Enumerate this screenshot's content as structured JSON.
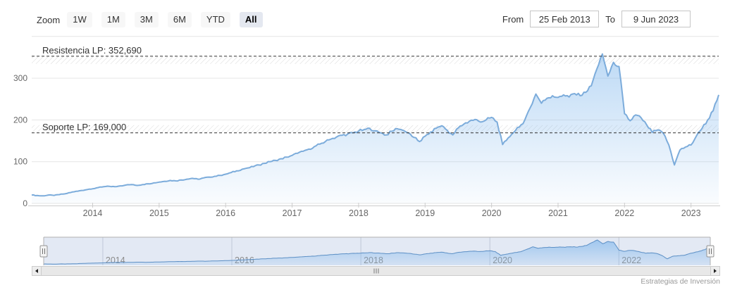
{
  "toolbar": {
    "zoom_label": "Zoom",
    "buttons": [
      {
        "label": "1W",
        "selected": false
      },
      {
        "label": "1M",
        "selected": false
      },
      {
        "label": "3M",
        "selected": false
      },
      {
        "label": "6M",
        "selected": false
      },
      {
        "label": "YTD",
        "selected": false
      },
      {
        "label": "All",
        "selected": true
      }
    ],
    "from_label": "From",
    "from_value": "25 Feb 2013",
    "to_label": "To",
    "to_value": "9 Jun 2023"
  },
  "chart_data": {
    "type": "area",
    "title": "",
    "xlabel": "",
    "ylabel": "",
    "x_unit": "month",
    "x_range": [
      "2013-02",
      "2023-06"
    ],
    "ylim": [
      0,
      400
    ],
    "yticks": [
      0,
      100,
      200,
      300
    ],
    "xticks": [
      "2014",
      "2015",
      "2016",
      "2017",
      "2018",
      "2019",
      "2020",
      "2021",
      "2022",
      "2023"
    ],
    "plot_lines": [
      {
        "label": "Resistencia LP: 352,690",
        "value": 352.69,
        "style": "dashed",
        "hatch_side": "below"
      },
      {
        "label": "Soporte LP: 169,000",
        "value": 169.0,
        "style": "dashed",
        "hatch_side": "above"
      }
    ],
    "points": [
      [
        "2013-02",
        20
      ],
      [
        "2013-03",
        19
      ],
      [
        "2013-04",
        18
      ],
      [
        "2013-05",
        20
      ],
      [
        "2013-06",
        19
      ],
      [
        "2013-07",
        21
      ],
      [
        "2013-08",
        23
      ],
      [
        "2013-09",
        26
      ],
      [
        "2013-10",
        29
      ],
      [
        "2013-11",
        31
      ],
      [
        "2013-12",
        33
      ],
      [
        "2014-01",
        35
      ],
      [
        "2014-02",
        38
      ],
      [
        "2014-03",
        40
      ],
      [
        "2014-04",
        41
      ],
      [
        "2014-05",
        40
      ],
      [
        "2014-06",
        42
      ],
      [
        "2014-07",
        44
      ],
      [
        "2014-08",
        45
      ],
      [
        "2014-09",
        43
      ],
      [
        "2014-10",
        45
      ],
      [
        "2014-11",
        47
      ],
      [
        "2014-12",
        49
      ],
      [
        "2015-01",
        51
      ],
      [
        "2015-02",
        53
      ],
      [
        "2015-03",
        55
      ],
      [
        "2015-04",
        54
      ],
      [
        "2015-05",
        56
      ],
      [
        "2015-06",
        58
      ],
      [
        "2015-07",
        60
      ],
      [
        "2015-08",
        58
      ],
      [
        "2015-09",
        61
      ],
      [
        "2015-10",
        63
      ],
      [
        "2015-11",
        65
      ],
      [
        "2015-12",
        67
      ],
      [
        "2016-01",
        70
      ],
      [
        "2016-02",
        74
      ],
      [
        "2016-03",
        78
      ],
      [
        "2016-04",
        82
      ],
      [
        "2016-05",
        85
      ],
      [
        "2016-06",
        88
      ],
      [
        "2016-07",
        92
      ],
      [
        "2016-08",
        96
      ],
      [
        "2016-09",
        100
      ],
      [
        "2016-10",
        103
      ],
      [
        "2016-11",
        107
      ],
      [
        "2016-12",
        111
      ],
      [
        "2017-01",
        115
      ],
      [
        "2017-02",
        120
      ],
      [
        "2017-03",
        125
      ],
      [
        "2017-04",
        130
      ],
      [
        "2017-05",
        136
      ],
      [
        "2017-06",
        142
      ],
      [
        "2017-07",
        148
      ],
      [
        "2017-08",
        154
      ],
      [
        "2017-09",
        159
      ],
      [
        "2017-10",
        163
      ],
      [
        "2017-11",
        166
      ],
      [
        "2017-12",
        169
      ],
      [
        "2018-01",
        173
      ],
      [
        "2018-02",
        177
      ],
      [
        "2018-03",
        180
      ],
      [
        "2018-04",
        174
      ],
      [
        "2018-05",
        169
      ],
      [
        "2018-06",
        164
      ],
      [
        "2018-07",
        173
      ],
      [
        "2018-08",
        179
      ],
      [
        "2018-09",
        175
      ],
      [
        "2018-10",
        169
      ],
      [
        "2018-11",
        158
      ],
      [
        "2018-12",
        148
      ],
      [
        "2019-01",
        161
      ],
      [
        "2019-02",
        171
      ],
      [
        "2019-03",
        180
      ],
      [
        "2019-04",
        186
      ],
      [
        "2019-05",
        175
      ],
      [
        "2019-06",
        164
      ],
      [
        "2019-07",
        181
      ],
      [
        "2019-08",
        190
      ],
      [
        "2019-09",
        197
      ],
      [
        "2019-10",
        201
      ],
      [
        "2019-11",
        195
      ],
      [
        "2019-12",
        200
      ],
      [
        "2020-01",
        206
      ],
      [
        "2020-02",
        195
      ],
      [
        "2020-03",
        141
      ],
      [
        "2020-04",
        157
      ],
      [
        "2020-05",
        170
      ],
      [
        "2020-06",
        183
      ],
      [
        "2020-07",
        200
      ],
      [
        "2020-08",
        230
      ],
      [
        "2020-09",
        262
      ],
      [
        "2020-10",
        240
      ],
      [
        "2020-11",
        252
      ],
      [
        "2020-12",
        258
      ],
      [
        "2021-01",
        254
      ],
      [
        "2021-02",
        260
      ],
      [
        "2021-03",
        255
      ],
      [
        "2021-04",
        263
      ],
      [
        "2021-05",
        258
      ],
      [
        "2021-06",
        266
      ],
      [
        "2021-07",
        282
      ],
      [
        "2021-08",
        322
      ],
      [
        "2021-09",
        358
      ],
      [
        "2021-10",
        305
      ],
      [
        "2021-11",
        338
      ],
      [
        "2021-12",
        328
      ],
      [
        "2022-01",
        215
      ],
      [
        "2022-02",
        198
      ],
      [
        "2022-03",
        212
      ],
      [
        "2022-04",
        205
      ],
      [
        "2022-05",
        188
      ],
      [
        "2022-06",
        170
      ],
      [
        "2022-07",
        176
      ],
      [
        "2022-08",
        168
      ],
      [
        "2022-09",
        140
      ],
      [
        "2022-10",
        92
      ],
      [
        "2022-11",
        128
      ],
      [
        "2022-12",
        135
      ],
      [
        "2023-01",
        140
      ],
      [
        "2023-02",
        162
      ],
      [
        "2023-03",
        180
      ],
      [
        "2023-04",
        200
      ],
      [
        "2023-05",
        222
      ],
      [
        "2023-06",
        260
      ]
    ],
    "colors": {
      "line": "#7cacdb",
      "fill_top": "rgba(124,181,236,0.50)",
      "fill_bottom": "rgba(124,181,236,0.04)",
      "grid": "#e6e6e6",
      "axis_line": "#cccccc",
      "axis_label": "#666666",
      "plot_line": "#333333",
      "nav_mask": "rgba(102,133,194,0.18)",
      "nav_line": "#5c8fc5",
      "nav_fill_top": "rgba(124,181,236,0.65)",
      "nav_fill_bottom": "rgba(124,181,236,0.15)",
      "nav_grid": "#a8b2c4"
    },
    "legend": "off",
    "grid": "horizontal"
  },
  "navigator": {
    "year_labels": [
      "2014",
      "2016",
      "2018",
      "2020",
      "2022"
    ]
  },
  "attribution": "Estrategias de Inversión"
}
